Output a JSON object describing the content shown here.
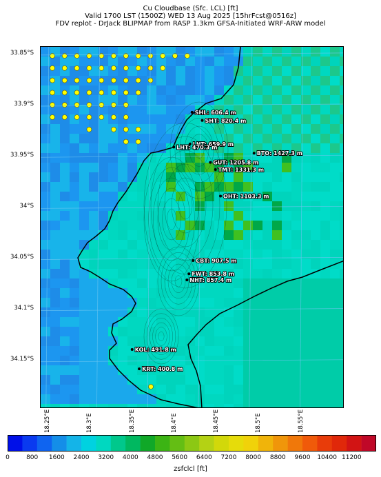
{
  "header": {
    "line1": "Cu Cloudbase (Sfc. LCL) [ft]",
    "line2": "Valid 1700 LST (1500Z) WED 13 Aug 2025 [15hrFcst@0516z]",
    "line3": "FDV replot - DrJack BLIPMAP from RASP 1.3km GFSA-Initiated WRF-ARW model"
  },
  "lat_labels": [
    "33.85°S",
    "33.9°S",
    "33.95°S",
    "34°S",
    "34.05°S",
    "34.1°S",
    "34.15°S"
  ],
  "lon_labels": [
    "18.25°E",
    "18.3°E",
    "18.35°E",
    "18.4°E",
    "18.45°E",
    "18.5°E",
    "18.55°E"
  ],
  "stations": [
    {
      "label": "SHL: 606.4 m",
      "lon": 18.391,
      "lat": -33.906
    },
    {
      "label": "SHT: 820.4 m",
      "lon": 18.401,
      "lat": -33.914
    },
    {
      "label": "LHT: 659.9 m",
      "lon": 18.389,
      "lat": -33.937
    },
    {
      "label": "LHT: 470.3 m",
      "lon": 18.373,
      "lat": -33.94
    },
    {
      "label": "BTO: 1427.3 m",
      "lon": 18.452,
      "lat": -33.946
    },
    {
      "label": "GUT: 1205.8 m",
      "lon": 18.409,
      "lat": -33.955
    },
    {
      "label": "TMT: 1331.3 m",
      "lon": 18.414,
      "lat": -33.962
    },
    {
      "label": "OHT: 1103.3 m",
      "lon": 18.419,
      "lat": -33.988
    },
    {
      "label": "CBT: 907.5 m",
      "lon": 18.392,
      "lat": -34.051
    },
    {
      "label": "FWT: 853.8 m",
      "lon": 18.388,
      "lat": -34.064
    },
    {
      "label": "NHT: 857.4 m",
      "lon": 18.386,
      "lat": -34.07
    },
    {
      "label": "KOL: 491.8 m",
      "lon": 18.332,
      "lat": -34.138
    },
    {
      "label": "KRT: 400.8 m",
      "lon": 18.339,
      "lat": -34.157
    }
  ],
  "colorbar": {
    "ticks": [
      "0",
      "800",
      "1600",
      "2400",
      "3200",
      "4000",
      "4800",
      "5600",
      "6400",
      "7200",
      "8000",
      "8800",
      "9600",
      "10400",
      "11200"
    ],
    "colors": [
      "#0010e8",
      "#0a3af0",
      "#0f64f0",
      "#148ee8",
      "#14b4e8",
      "#00d2e0",
      "#00d8c0",
      "#00c88c",
      "#00b860",
      "#10a828",
      "#3cb414",
      "#64be14",
      "#8cc814",
      "#b4d214",
      "#d2d80a",
      "#e6dc0a",
      "#f0d20a",
      "#f0b40a",
      "#f0960a",
      "#f0780a",
      "#f05a0a",
      "#e83c0a",
      "#e0280a",
      "#d21414",
      "#c00828"
    ],
    "label": "zsfclcl [ft]",
    "min": 0,
    "max": 12000
  },
  "map": {
    "lon_range": [
      18.242,
      18.541
    ],
    "lat_range": [
      -34.196,
      -33.842
    ],
    "ocean_color": "#1c96f0",
    "land_color": "#00d8c0",
    "peak_color": "#00a848",
    "marker_color": "#ffff00"
  }
}
